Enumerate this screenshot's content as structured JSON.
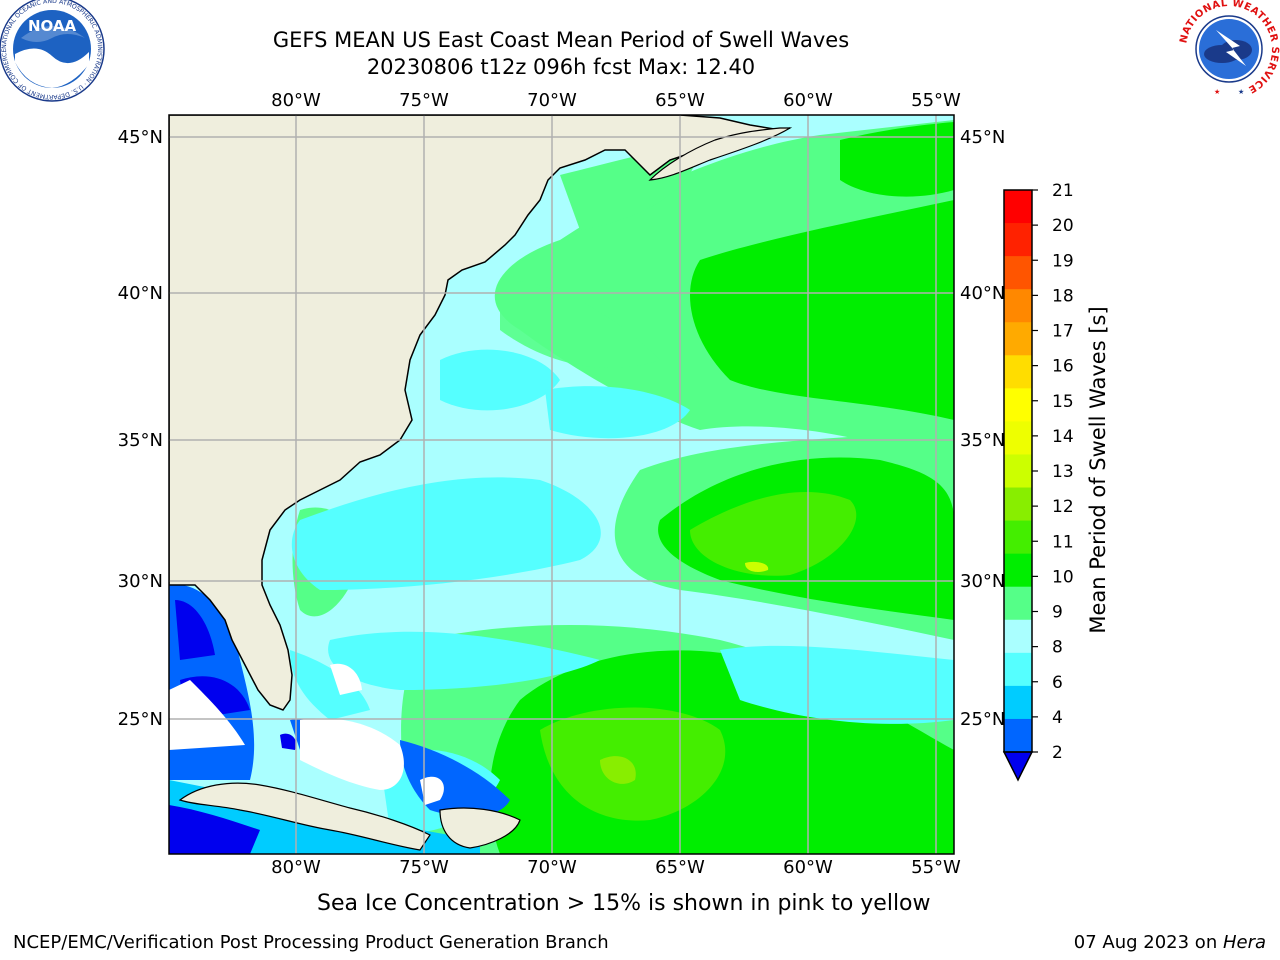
{
  "title": {
    "line1": "GEFS MEAN US East Coast Mean Period of Swell Waves",
    "line2": "20230806 t12z 096h fcst   Max: 12.40"
  },
  "map": {
    "lon_labels": [
      "80°W",
      "75°W",
      "70°W",
      "65°W",
      "60°W",
      "55°W"
    ],
    "lat_labels": [
      "45°N",
      "40°N",
      "35°N",
      "30°N",
      "25°N"
    ],
    "lon_range": [
      -85,
      -54.5
    ],
    "lat_range": [
      20.5,
      45.9
    ],
    "land_color": "#efeedd",
    "grid_color": "#b0b0b0"
  },
  "colorbar": {
    "label": "Mean Period of Swell Waves [s]",
    "ticks": [
      "2",
      "4",
      "6",
      "8",
      "9",
      "10",
      "11",
      "12",
      "13",
      "14",
      "15",
      "16",
      "17",
      "18",
      "19",
      "20",
      "21"
    ],
    "colors": [
      "#0066ff",
      "#00ccff",
      "#55ffff",
      "#aaffff",
      "#55ff88",
      "#00ee00",
      "#44ee00",
      "#88ee00",
      "#ccff00",
      "#eeff00",
      "#ffff00",
      "#ffdd00",
      "#ffaa00",
      "#ff8800",
      "#ff5500",
      "#ff2200",
      "#ff0000"
    ],
    "extend_color": "#0000ee"
  },
  "bottom_note": "Sea Ice Concentration > 15% is shown in pink to yellow",
  "footer": {
    "left": "NCEP/EMC/Verification Post Processing Product Generation Branch",
    "right_date": "07 Aug 2023 on ",
    "right_host": "Hera"
  },
  "logos": {
    "noaa_text": "NOAA",
    "noaa_ring": "NATIONAL OCEANIC AND ATMOSPHERIC ADMINISTRATION · U.S. DEPARTMENT OF COMMERCE",
    "nws_ring": "NATIONAL WEATHER SERVICE"
  }
}
